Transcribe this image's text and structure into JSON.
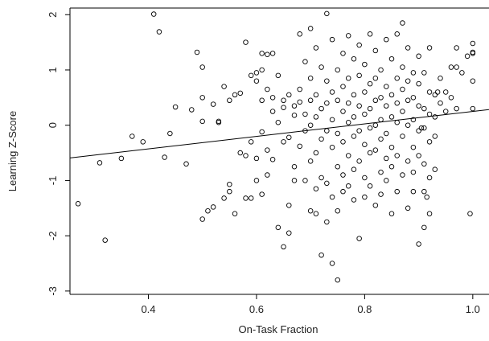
{
  "chart_data": {
    "type": "scatter",
    "title": "",
    "xlabel": "On-Task Fraction",
    "ylabel": "Learning Z-Score",
    "xlim": [
      0.255,
      1.03
    ],
    "ylim": [
      -3.06,
      2.12
    ],
    "x_ticks": [
      0.4,
      0.6,
      0.8,
      1.0
    ],
    "x_tick_labels": [
      "0.4",
      "0.6",
      "0.8",
      "1.0"
    ],
    "y_ticks": [
      -3,
      -2,
      -1,
      0,
      1,
      2
    ],
    "y_tick_labels": [
      "-3",
      "-2",
      "-1",
      "0",
      "1",
      "2"
    ],
    "grid": false,
    "legend": "none",
    "marker": "open-circle",
    "colors": {
      "points": "#000000",
      "axes": "#000000",
      "background": "#ffffff"
    },
    "regression_line": {
      "intercept": -0.88,
      "slope": 1.13
    },
    "points": [
      [
        0.27,
        -1.42
      ],
      [
        0.31,
        -0.68
      ],
      [
        0.32,
        -2.08
      ],
      [
        0.35,
        -0.6
      ],
      [
        0.37,
        -0.2
      ],
      [
        0.39,
        -0.3
      ],
      [
        0.41,
        2.01
      ],
      [
        0.42,
        1.69
      ],
      [
        0.43,
        -0.58
      ],
      [
        0.44,
        -0.15
      ],
      [
        0.45,
        0.33
      ],
      [
        0.47,
        -0.7
      ],
      [
        0.48,
        0.28
      ],
      [
        0.49,
        1.32
      ],
      [
        0.5,
        1.05
      ],
      [
        0.5,
        0.5
      ],
      [
        0.5,
        0.07
      ],
      [
        0.5,
        -1.7
      ],
      [
        0.51,
        -1.55
      ],
      [
        0.52,
        -1.48
      ],
      [
        0.52,
        0.38
      ],
      [
        0.53,
        0.07
      ],
      [
        0.53,
        0.05
      ],
      [
        0.54,
        -1.32
      ],
      [
        0.54,
        0.7
      ],
      [
        0.55,
        -1.07
      ],
      [
        0.55,
        -1.2
      ],
      [
        0.55,
        0.45
      ],
      [
        0.56,
        -1.6
      ],
      [
        0.56,
        0.55
      ],
      [
        0.57,
        -0.5
      ],
      [
        0.57,
        0.58
      ],
      [
        0.58,
        1.5
      ],
      [
        0.58,
        -0.55
      ],
      [
        0.58,
        -1.32
      ],
      [
        0.59,
        -0.3
      ],
      [
        0.59,
        0.9
      ],
      [
        0.59,
        -1.32
      ],
      [
        0.6,
        0.95
      ],
      [
        0.6,
        -0.6
      ],
      [
        0.6,
        -1.0
      ],
      [
        0.6,
        0.8
      ],
      [
        0.61,
        1.3
      ],
      [
        0.61,
        0.45
      ],
      [
        0.61,
        1.0
      ],
      [
        0.61,
        -0.12
      ],
      [
        0.61,
        -1.25
      ],
      [
        0.62,
        1.28
      ],
      [
        0.62,
        0.65
      ],
      [
        0.62,
        -0.45
      ],
      [
        0.62,
        -0.9
      ],
      [
        0.63,
        1.3
      ],
      [
        0.63,
        0.5
      ],
      [
        0.63,
        0.25
      ],
      [
        0.63,
        -0.62
      ],
      [
        0.64,
        0.9
      ],
      [
        0.64,
        -1.85
      ],
      [
        0.64,
        0.05
      ],
      [
        0.65,
        0.45
      ],
      [
        0.65,
        0.32
      ],
      [
        0.65,
        -0.3
      ],
      [
        0.65,
        -2.2
      ],
      [
        0.66,
        -1.95
      ],
      [
        0.66,
        -1.45
      ],
      [
        0.66,
        -0.22
      ],
      [
        0.66,
        0.55
      ],
      [
        0.67,
        0.35
      ],
      [
        0.67,
        0.18
      ],
      [
        0.67,
        -0.75
      ],
      [
        0.67,
        -1.0
      ],
      [
        0.68,
        1.65
      ],
      [
        0.68,
        0.65
      ],
      [
        0.68,
        0.42
      ],
      [
        0.68,
        -0.38
      ],
      [
        0.69,
        1.15
      ],
      [
        0.69,
        0.2
      ],
      [
        0.69,
        -0.1
      ],
      [
        0.69,
        -1.0
      ],
      [
        0.7,
        1.75
      ],
      [
        0.7,
        0.85
      ],
      [
        0.7,
        0.45
      ],
      [
        0.7,
        0.0
      ],
      [
        0.7,
        -0.65
      ],
      [
        0.7,
        -1.55
      ],
      [
        0.71,
        1.4
      ],
      [
        0.71,
        0.55
      ],
      [
        0.71,
        0.15
      ],
      [
        0.71,
        -0.5
      ],
      [
        0.71,
        -1.15
      ],
      [
        0.71,
        -1.6
      ],
      [
        0.72,
        1.05
      ],
      [
        0.72,
        0.3
      ],
      [
        0.72,
        -0.25
      ],
      [
        0.72,
        -0.95
      ],
      [
        0.72,
        -2.35
      ],
      [
        0.73,
        2.02
      ],
      [
        0.73,
        0.8
      ],
      [
        0.73,
        0.4
      ],
      [
        0.73,
        -0.1
      ],
      [
        0.73,
        -1.05
      ],
      [
        0.73,
        -1.75
      ],
      [
        0.74,
        1.55
      ],
      [
        0.74,
        0.6
      ],
      [
        0.74,
        0.1
      ],
      [
        0.74,
        -0.4
      ],
      [
        0.74,
        -1.3
      ],
      [
        0.74,
        -2.5
      ],
      [
        0.75,
        1.0
      ],
      [
        0.75,
        0.45
      ],
      [
        0.75,
        -0.15
      ],
      [
        0.75,
        -0.75
      ],
      [
        0.75,
        -1.55
      ],
      [
        0.75,
        -2.8
      ],
      [
        0.76,
        1.3
      ],
      [
        0.76,
        0.7
      ],
      [
        0.76,
        0.25
      ],
      [
        0.76,
        -0.3
      ],
      [
        0.76,
        -0.9
      ],
      [
        0.76,
        -1.2
      ],
      [
        0.77,
        1.62
      ],
      [
        0.77,
        0.85
      ],
      [
        0.77,
        0.4
      ],
      [
        0.77,
        0.05
      ],
      [
        0.77,
        -0.55
      ],
      [
        0.77,
        -1.1
      ],
      [
        0.78,
        1.2
      ],
      [
        0.78,
        0.55
      ],
      [
        0.78,
        0.15
      ],
      [
        0.78,
        -0.2
      ],
      [
        0.78,
        -0.8
      ],
      [
        0.78,
        -1.35
      ],
      [
        0.79,
        1.45
      ],
      [
        0.79,
        0.9
      ],
      [
        0.79,
        0.35
      ],
      [
        0.79,
        -0.1
      ],
      [
        0.79,
        -0.65
      ],
      [
        0.79,
        -2.05
      ],
      [
        0.8,
        1.1
      ],
      [
        0.8,
        0.6
      ],
      [
        0.8,
        0.2
      ],
      [
        0.8,
        -0.35
      ],
      [
        0.8,
        -0.95
      ],
      [
        0.8,
        -1.3
      ],
      [
        0.81,
        1.65
      ],
      [
        0.81,
        0.75
      ],
      [
        0.81,
        0.3
      ],
      [
        0.81,
        -0.05
      ],
      [
        0.81,
        -0.5
      ],
      [
        0.81,
        -1.1
      ],
      [
        0.82,
        1.35
      ],
      [
        0.82,
        0.85
      ],
      [
        0.82,
        0.45
      ],
      [
        0.82,
        0.0
      ],
      [
        0.82,
        -0.45
      ],
      [
        0.82,
        -1.45
      ],
      [
        0.83,
        1.0
      ],
      [
        0.83,
        0.5
      ],
      [
        0.83,
        0.1
      ],
      [
        0.83,
        -0.25
      ],
      [
        0.83,
        -0.85
      ],
      [
        0.83,
        -1.25
      ],
      [
        0.84,
        1.55
      ],
      [
        0.84,
        0.7
      ],
      [
        0.84,
        0.35
      ],
      [
        0.84,
        -0.15
      ],
      [
        0.84,
        -0.6
      ],
      [
        0.84,
        -1.0
      ],
      [
        0.85,
        1.2
      ],
      [
        0.85,
        0.55
      ],
      [
        0.85,
        0.15
      ],
      [
        0.85,
        -0.4
      ],
      [
        0.85,
        -0.75
      ],
      [
        0.85,
        -1.6
      ],
      [
        0.86,
        1.65
      ],
      [
        0.86,
        0.85
      ],
      [
        0.86,
        0.4
      ],
      [
        0.86,
        0.05
      ],
      [
        0.86,
        -0.55
      ],
      [
        0.86,
        -1.2
      ],
      [
        0.87,
        1.85
      ],
      [
        0.87,
        1.05
      ],
      [
        0.87,
        0.65
      ],
      [
        0.87,
        0.25
      ],
      [
        0.87,
        -0.2
      ],
      [
        0.87,
        -0.9
      ],
      [
        0.88,
        1.4
      ],
      [
        0.88,
        0.8
      ],
      [
        0.88,
        0.45
      ],
      [
        0.88,
        0.0
      ],
      [
        0.88,
        -0.65
      ],
      [
        0.88,
        -1.5
      ],
      [
        0.89,
        0.95
      ],
      [
        0.89,
        0.5
      ],
      [
        0.89,
        0.1
      ],
      [
        0.89,
        -0.4
      ],
      [
        0.89,
        -0.85
      ],
      [
        0.89,
        -1.2
      ],
      [
        0.9,
        1.25
      ],
      [
        0.9,
        0.75
      ],
      [
        0.9,
        0.35
      ],
      [
        0.9,
        -0.1
      ],
      [
        0.9,
        -0.55
      ],
      [
        0.9,
        -2.15
      ],
      [
        0.91,
        0.95
      ],
      [
        0.91,
        0.3
      ],
      [
        0.91,
        -0.05
      ],
      [
        0.91,
        -0.7
      ],
      [
        0.91,
        -1.2
      ],
      [
        0.91,
        -1.85
      ],
      [
        0.92,
        1.4
      ],
      [
        0.92,
        0.6
      ],
      [
        0.92,
        0.2
      ],
      [
        0.92,
        -0.3
      ],
      [
        0.92,
        -0.95
      ],
      [
        0.92,
        -1.6
      ],
      [
        0.93,
        0.55
      ],
      [
        0.93,
        0.15
      ],
      [
        0.93,
        -0.2
      ],
      [
        0.93,
        -0.8
      ],
      [
        0.94,
        0.85
      ],
      [
        0.94,
        0.4
      ],
      [
        0.95,
        0.6
      ],
      [
        0.95,
        0.25
      ],
      [
        0.96,
        1.05
      ],
      [
        0.96,
        0.5
      ],
      [
        0.97,
        0.3
      ],
      [
        0.97,
        1.4
      ],
      [
        0.98,
        0.95
      ],
      [
        0.99,
        1.25
      ],
      [
        1.0,
        1.48
      ],
      [
        1.0,
        1.32
      ],
      [
        1.0,
        1.3
      ],
      [
        1.0,
        0.8
      ],
      [
        1.0,
        0.3
      ],
      [
        0.995,
        -1.6
      ],
      [
        0.97,
        1.05
      ],
      [
        0.905,
        -0.05
      ],
      [
        0.915,
        -1.3
      ],
      [
        0.935,
        0.6
      ]
    ]
  }
}
